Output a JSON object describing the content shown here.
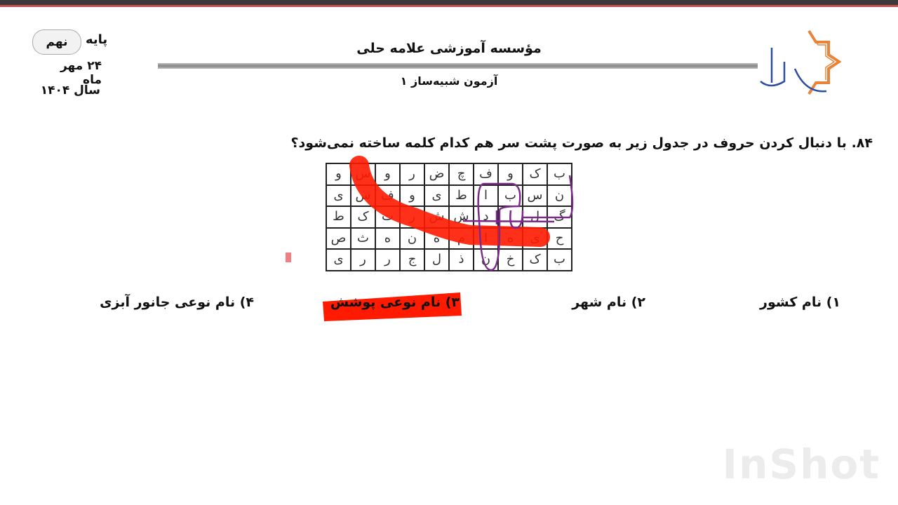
{
  "header": {
    "grade_label": "پایه",
    "grade_value": "نهم",
    "date": "۲۴ مهر ماه",
    "year": "سال ۱۴۰۴",
    "institute": "مؤسسه آموزشی علامه حلی",
    "exam": "آزمون شبیه‌ساز ۱",
    "logo_text": "علامه حلی",
    "logo_colors": {
      "star": "#e8843a",
      "text": "#2b4ea0"
    }
  },
  "question": {
    "number": "۸۴.",
    "text": "با دنبال کردن حروف در جدول زیر به صورت پشت سر هم کدام کلمه ساخته نمی‌شود؟",
    "grid_rows": [
      [
        "ب",
        "ک",
        "و",
        "ف",
        "چ",
        "ض",
        "ر",
        "و",
        "س",
        "و"
      ],
      [
        "ن",
        "س",
        "ب",
        "ا",
        "ط",
        "ی",
        "و",
        "ف",
        "س",
        "ی"
      ],
      [
        "گ",
        "ل",
        "ا",
        "د",
        "ش",
        "ش",
        "ر",
        "ت",
        "ک",
        "ط"
      ],
      [
        "ح",
        "ی",
        "ه",
        "ا",
        "م",
        "ه",
        "ن",
        "ه",
        "ث",
        "ص"
      ],
      [
        "ب",
        "ک",
        "خ",
        "ن",
        "ذ",
        "ل",
        "ج",
        "ر",
        "ر",
        "ی"
      ]
    ],
    "options": [
      "۱) نام کشور",
      "۲) نام شهر",
      "۳) نام نوعی پوشش",
      "۴) نام نوعی جانور آبزی"
    ],
    "highlighted_option": 3
  },
  "annotation_colors": {
    "highlight": "#ff1a00",
    "loop": "#7b2a8a"
  },
  "watermark": "InShot"
}
